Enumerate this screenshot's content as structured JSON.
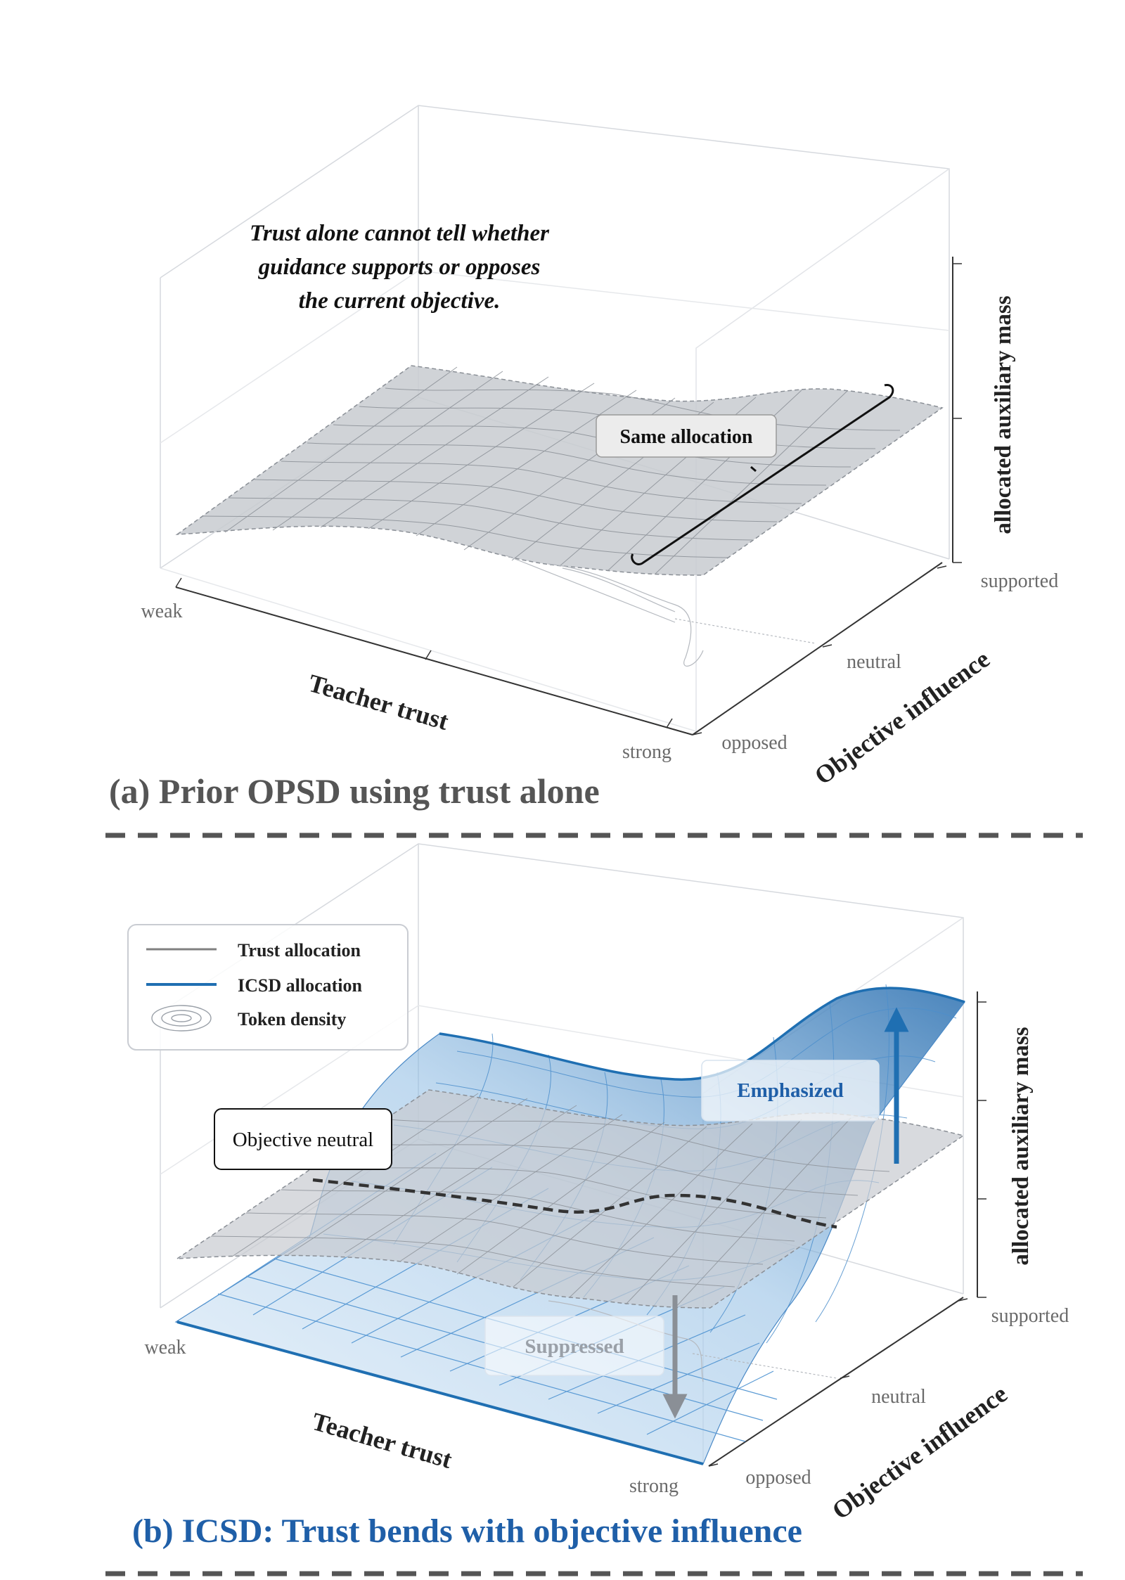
{
  "panel_a": {
    "title": "(a) Prior OPSD using trust alone",
    "annotation_lines": [
      "Trust alone cannot tell whether",
      "guidance supports or opposes",
      "the current objective."
    ],
    "callout": "Same allocation",
    "x_axis": {
      "label": "Teacher trust",
      "ticks": [
        "weak",
        "strong"
      ]
    },
    "y_axis": {
      "label": "Objective influence",
      "ticks": [
        "opposed",
        "neutral",
        "supported"
      ]
    },
    "z_axis": {
      "label": "allocated auxiliary mass"
    }
  },
  "panel_b": {
    "title": "(b) ICSD: Trust bends with objective influence",
    "legend": [
      {
        "label": "Trust allocation",
        "color": "#808080"
      },
      {
        "label": "ICSD allocation",
        "color": "#1f6fb2"
      },
      {
        "label": "Token density",
        "color": "#9aa0a8"
      }
    ],
    "callouts": {
      "neutral": "Objective neutral",
      "emphasized": "Emphasized",
      "suppressed": "Suppressed"
    },
    "x_axis": {
      "label": "Teacher trust",
      "ticks": [
        "weak",
        "strong"
      ]
    },
    "y_axis": {
      "label": "Objective influence",
      "ticks": [
        "opposed",
        "neutral",
        "supported"
      ]
    },
    "z_axis": {
      "label": "allocated auxiliary mass"
    }
  },
  "colors": {
    "trust_surface": "#c8cbd0",
    "icsd_surface": "#2a74b8",
    "title_a": "#555555",
    "title_b": "#1f5fa8",
    "separator": "#555555"
  }
}
